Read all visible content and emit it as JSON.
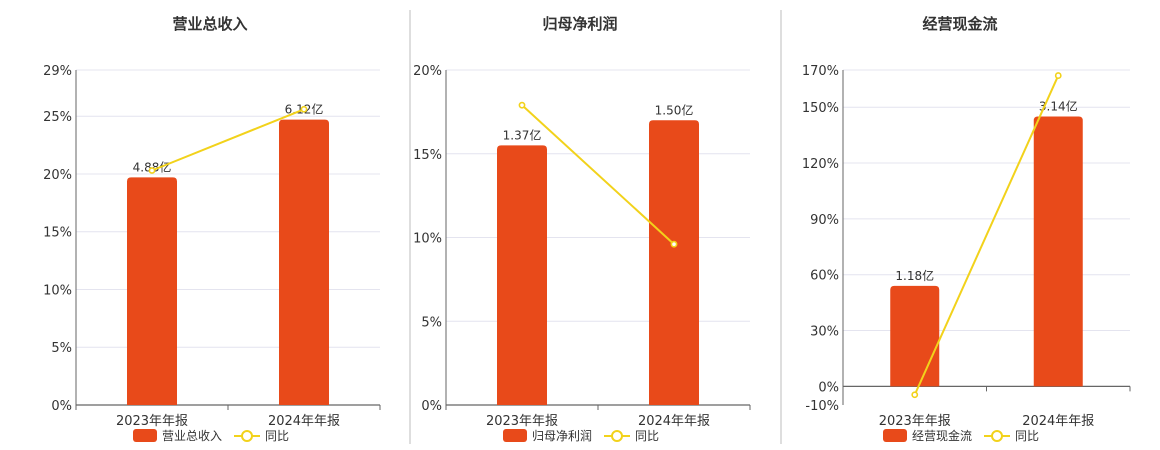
{
  "colors": {
    "bar": "#e84a1a",
    "line": "#f2d21b",
    "grid": "#e4e4ef",
    "axis": "#666666",
    "divider": "#bdbdbd"
  },
  "chart_data": [
    {
      "type": "bar",
      "title": "营业总收入",
      "categories": [
        "2023年年报",
        "2024年年报"
      ],
      "ylim": [
        0,
        29
      ],
      "yticks": [
        0,
        5,
        10,
        15,
        20,
        25,
        29
      ],
      "tick_labels": [
        "0%",
        "5%",
        "10%",
        "15%",
        "20%",
        "25%",
        "29%"
      ],
      "series": [
        {
          "name": "营业总收入",
          "kind": "bar",
          "values": [
            19.7,
            24.7
          ],
          "labels": [
            "4.88亿",
            "6.12亿"
          ]
        },
        {
          "name": "同比",
          "kind": "line",
          "values": [
            20.3,
            25.6
          ]
        }
      ],
      "grid": true,
      "legend": "bottom"
    },
    {
      "type": "bar",
      "title": "归母净利润",
      "categories": [
        "2023年年报",
        "2024年年报"
      ],
      "ylim": [
        0,
        20
      ],
      "yticks": [
        0,
        5,
        10,
        15,
        20
      ],
      "tick_labels": [
        "0%",
        "5%",
        "10%",
        "15%",
        "20%"
      ],
      "series": [
        {
          "name": "归母净利润",
          "kind": "bar",
          "values": [
            15.5,
            17.0
          ],
          "labels": [
            "1.37亿",
            "1.50亿"
          ]
        },
        {
          "name": "同比",
          "kind": "line",
          "values": [
            17.9,
            9.6
          ]
        }
      ],
      "grid": true,
      "legend": "bottom"
    },
    {
      "type": "bar",
      "title": "经营现金流",
      "categories": [
        "2023年年报",
        "2024年年报"
      ],
      "ylim": [
        -10,
        170
      ],
      "yticks": [
        -10,
        0,
        30,
        60,
        90,
        120,
        150,
        170
      ],
      "tick_labels": [
        "-10%",
        "0%",
        "30%",
        "60%",
        "90%",
        "120%",
        "150%",
        "170%"
      ],
      "series": [
        {
          "name": "经营现金流",
          "kind": "bar",
          "values": [
            54,
            145
          ],
          "labels": [
            "1.18亿",
            "3.14亿"
          ]
        },
        {
          "name": "同比",
          "kind": "line",
          "values": [
            -4.5,
            167
          ]
        }
      ],
      "grid": true,
      "legend": "bottom"
    }
  ]
}
